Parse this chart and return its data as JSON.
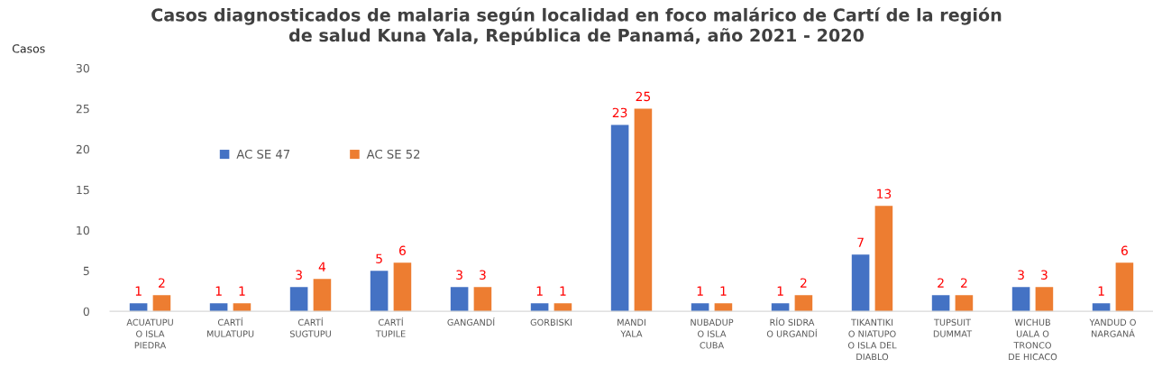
{
  "chart_data": {
    "type": "bar",
    "title": "Casos diagnosticados de malaria según localidad en foco malárico de Cartí de la región\nde salud Kuna Yala, República de Panamá, año 2021 - 2020",
    "ylabel": "Casos",
    "categories": [
      "ACUATUPU\nO ISLA\nPIEDRA",
      "CARTÍ\nMULATUPU",
      "CARTÍ\nSUGTUPU",
      "CARTÍ\nTUPILE",
      "GANGANDÍ",
      "GORBISKI",
      "MANDI\nYALA",
      "NUBADUP\nO ISLA\nCUBA",
      "RÍO SIDRA\nO URGANDÍ",
      "TIKANTIKI\nO NIATUPO\nO ISLA DEL\nDIABLO",
      "TUPSUIT\nDUMMAT",
      "WICHUB\nUALA O\nTRONCO\nDE HICACO",
      "YANDUD O\nNARGANÁ"
    ],
    "series": [
      {
        "name": "AC SE 47",
        "color": "#4472c4",
        "values": [
          1,
          1,
          3,
          5,
          3,
          1,
          23,
          1,
          1,
          7,
          2,
          3,
          1
        ]
      },
      {
        "name": "AC SE 52",
        "color": "#ed7d31",
        "values": [
          2,
          1,
          4,
          6,
          3,
          1,
          25,
          1,
          2,
          13,
          2,
          3,
          6
        ]
      }
    ],
    "ylim": [
      0,
      30
    ],
    "yticks": [
      0,
      5,
      10,
      15,
      20,
      25,
      30
    ],
    "grid": false,
    "legend": "left",
    "data_labels": true
  }
}
